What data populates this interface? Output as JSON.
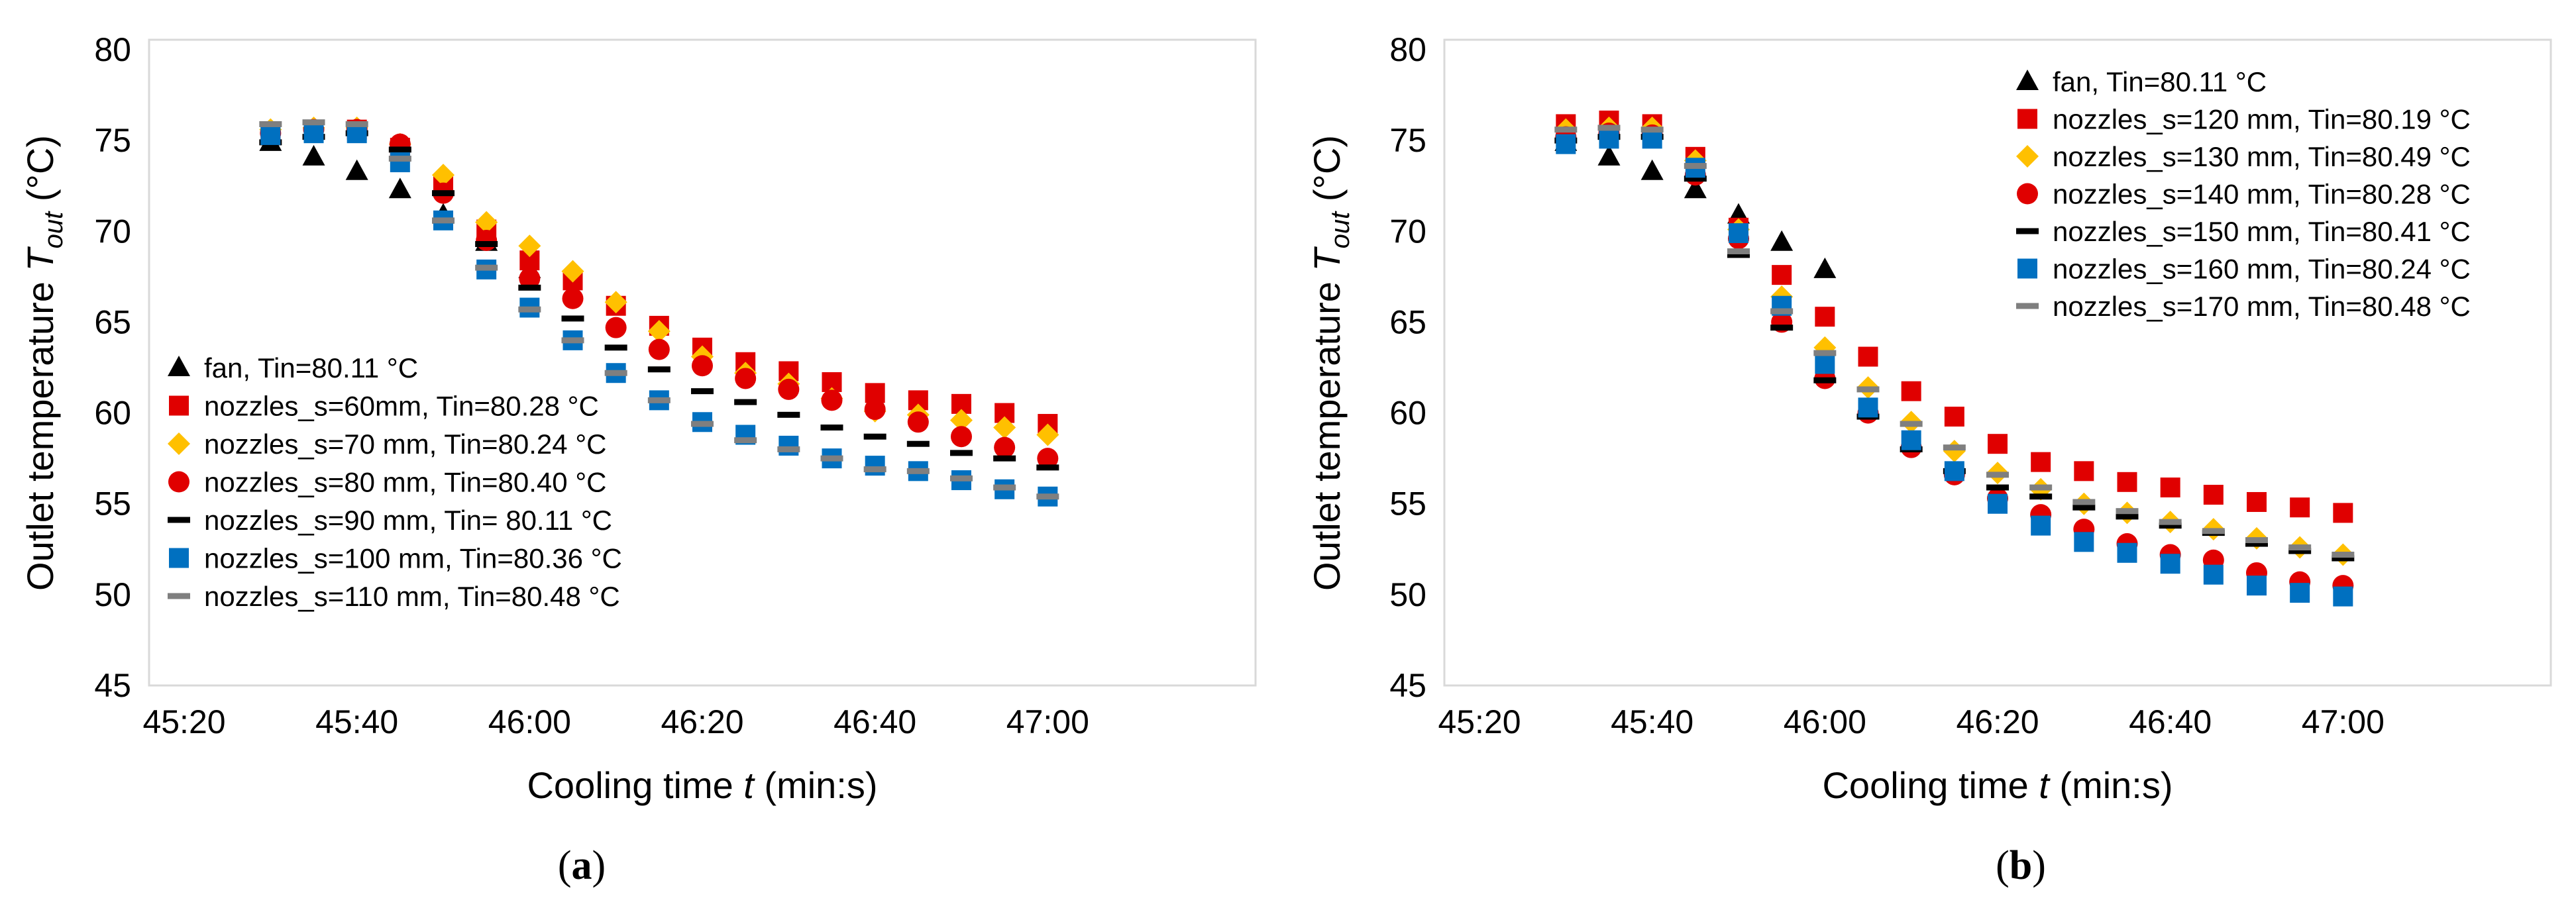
{
  "colors": {
    "fan": "#000000",
    "red": "#e00000",
    "yellow": "#ffc000",
    "blue": "#0070c0",
    "grey": "#7f7f7f"
  },
  "chart_data": [
    {
      "type": "scatter",
      "caption": {
        "open": "(",
        "letter": "a",
        "close": ")"
      },
      "xlabel": {
        "main": "Cooling time ",
        "var": "t",
        "unit": " (min:s)"
      },
      "ylabel": {
        "main": "Outlet temperature ",
        "var": "T",
        "sub": "out",
        "unit": " (°C)"
      },
      "ylim": [
        45,
        80
      ],
      "yticks": [
        "45",
        "50",
        "55",
        "60",
        "65",
        "70",
        "75",
        "80"
      ],
      "xlim_seconds": [
        2720,
        2840
      ],
      "xticks": [
        "45:20",
        "45:40",
        "46:00",
        "46:20",
        "46:40",
        "47:00"
      ],
      "x": [
        "45:30",
        "45:35",
        "45:40",
        "45:45",
        "45:50",
        "45:55",
        "46:00",
        "46:05",
        "46:10",
        "46:15",
        "46:20",
        "46:25",
        "46:30",
        "46:35",
        "46:40",
        "46:45",
        "46:50",
        "46:55",
        "47:00"
      ],
      "series": [
        {
          "name": "fan, Tin=80.11 °C",
          "marker": "triangle",
          "color": "fan",
          "x": [
            "45:30",
            "45:35",
            "45:40",
            "45:45",
            "45:50",
            "45:55",
            "46:00"
          ],
          "values": [
            74.9,
            74.1,
            73.3,
            72.3,
            70.9,
            69.4,
            67.9
          ]
        },
        {
          "name": "nozzles_s=60mm, Tin=80.28 °C",
          "marker": "square",
          "color": "red",
          "values": [
            75.4,
            75.6,
            75.6,
            74.6,
            72.5,
            70.1,
            68.4,
            67.3,
            65.9,
            64.8,
            63.6,
            62.8,
            62.3,
            61.7,
            61.1,
            60.7,
            60.5,
            60.0,
            59.4
          ]
        },
        {
          "name": "nozzles_s=70 mm, Tin=80.24 °C",
          "marker": "diamond",
          "color": "yellow",
          "values": [
            75.6,
            75.7,
            75.7,
            74.8,
            73.1,
            70.5,
            69.2,
            67.8,
            66.1,
            64.5,
            63.1,
            62.2,
            61.6,
            60.8,
            60.1,
            59.9,
            59.6,
            59.2,
            58.8
          ]
        },
        {
          "name": "nozzles_s=80 mm, Tin=80.40 °C",
          "marker": "circle",
          "color": "red",
          "values": [
            75.4,
            75.6,
            75.6,
            74.8,
            72.1,
            69.5,
            67.4,
            66.3,
            64.7,
            63.5,
            62.6,
            61.9,
            61.3,
            60.7,
            60.2,
            59.5,
            58.7,
            58.1,
            57.5
          ]
        },
        {
          "name": "nozzles_s= 90 mm, Tin= 80.11 °C",
          "label_override": "nozzles_s=90 mm, Tin= 80.11 °C",
          "marker": "dash",
          "color": "fan",
          "values": [
            74.9,
            75.2,
            75.4,
            74.5,
            72.1,
            69.3,
            66.9,
            65.2,
            63.6,
            62.4,
            61.2,
            60.6,
            59.9,
            59.2,
            58.7,
            58.3,
            57.8,
            57.5,
            57.0
          ]
        },
        {
          "name": "nozzles_s=100 mm, Tin=80.36 °C",
          "marker": "square",
          "color": "blue",
          "values": [
            75.3,
            75.4,
            75.4,
            73.8,
            70.6,
            67.9,
            65.8,
            64.0,
            62.2,
            60.7,
            59.5,
            58.8,
            58.2,
            57.5,
            57.1,
            56.8,
            56.3,
            55.8,
            55.4
          ]
        },
        {
          "name": "nozzles_s=110 mm, Tin=80.48 °C",
          "marker": "dash",
          "color": "grey",
          "values": [
            75.9,
            76.0,
            75.9,
            74.0,
            70.6,
            68.0,
            65.7,
            64.0,
            62.2,
            60.7,
            59.4,
            58.5,
            58.0,
            57.5,
            56.9,
            56.8,
            56.4,
            55.9,
            55.4
          ]
        }
      ]
    },
    {
      "type": "scatter",
      "caption": {
        "open": "(",
        "letter": "b",
        "close": ")"
      },
      "xlabel": {
        "main": "Cooling time ",
        "var": "t",
        "unit": " (min:s)"
      },
      "ylabel": {
        "main": "Outlet temperature ",
        "var": "T",
        "sub": "out",
        "unit": " (°C)"
      },
      "ylim": [
        45,
        80
      ],
      "yticks": [
        "45",
        "50",
        "55",
        "60",
        "65",
        "70",
        "75",
        "80"
      ],
      "xlim_seconds": [
        2720,
        2840
      ],
      "xticks": [
        "45:20",
        "45:40",
        "46:00",
        "46:20",
        "46:40",
        "47:00"
      ],
      "x": [
        "45:30",
        "45:35",
        "45:40",
        "45:45",
        "45:50",
        "45:55",
        "46:00",
        "46:05",
        "46:10",
        "46:15",
        "46:20",
        "46:25",
        "46:30",
        "46:35",
        "46:40",
        "46:45",
        "46:50",
        "46:55",
        "47:00"
      ],
      "series": [
        {
          "name": "fan, Tin=80.11 °C",
          "marker": "triangle",
          "color": "fan",
          "x": [
            "45:30",
            "45:35",
            "45:40",
            "45:45",
            "45:50",
            "45:55",
            "46:00"
          ],
          "values": [
            74.9,
            74.1,
            73.3,
            72.3,
            70.9,
            69.4,
            67.9
          ]
        },
        {
          "name": "nozzles_s=120 mm, Tin=80.19 °C",
          "marker": "square",
          "color": "red",
          "values": [
            75.9,
            76.1,
            75.9,
            74.1,
            70.2,
            67.6,
            65.3,
            63.1,
            61.2,
            59.8,
            58.3,
            57.3,
            56.8,
            56.2,
            55.9,
            55.5,
            55.1,
            54.8,
            54.5
          ]
        },
        {
          "name": "nozzles_s=130 mm, Tin=80.49 °C",
          "marker": "diamond",
          "color": "yellow",
          "values": [
            75.6,
            75.7,
            75.7,
            73.9,
            70.1,
            66.4,
            63.6,
            61.4,
            59.5,
            57.9,
            56.7,
            55.8,
            55.0,
            54.5,
            54.0,
            53.6,
            53.1,
            52.6,
            52.2
          ]
        },
        {
          "name": "nozzles_s=140 mm, Tin=80.28 °C",
          "marker": "circle",
          "color": "red",
          "values": [
            75.2,
            75.4,
            75.3,
            73.1,
            69.6,
            65.0,
            61.9,
            60.0,
            58.1,
            56.6,
            55.3,
            54.4,
            53.6,
            52.8,
            52.2,
            51.9,
            51.2,
            50.7,
            50.5
          ]
        },
        {
          "name": "nozzles_s=150 mm, Tin=80.41 °C",
          "marker": "dash",
          "color": "fan",
          "values": [
            75.0,
            75.2,
            75.2,
            72.9,
            68.7,
            64.7,
            61.8,
            59.8,
            58.0,
            56.8,
            55.9,
            55.4,
            54.8,
            54.3,
            53.8,
            53.4,
            52.8,
            52.4,
            52.0
          ]
        },
        {
          "name": "nozzles_s=160 mm, Tin=80.24 °C",
          "marker": "square",
          "color": "blue",
          "values": [
            74.8,
            75.1,
            75.1,
            73.5,
            69.9,
            65.9,
            62.7,
            60.3,
            58.5,
            56.8,
            55.0,
            53.8,
            52.9,
            52.3,
            51.7,
            51.1,
            50.5,
            50.1,
            49.9
          ]
        },
        {
          "name": "nozzles_s=170 mm, Tin=80.48 °C",
          "marker": "dash",
          "color": "grey",
          "values": [
            75.6,
            75.7,
            75.6,
            73.6,
            68.9,
            65.6,
            63.3,
            61.3,
            59.4,
            58.1,
            56.6,
            55.9,
            55.1,
            54.6,
            54.0,
            53.5,
            53.0,
            52.6,
            52.2
          ]
        }
      ]
    }
  ]
}
